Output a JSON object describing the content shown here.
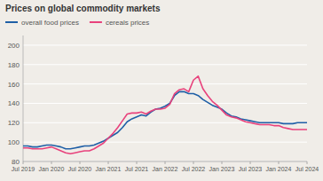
{
  "chart_data": {
    "type": "line",
    "title": "Prices on global commodity markets",
    "categories": [
      "Jul 2019",
      null,
      null,
      null,
      null,
      null,
      "Jan 2020",
      null,
      null,
      null,
      null,
      null,
      "Jul 2020",
      null,
      null,
      null,
      null,
      null,
      "Jan 2021",
      null,
      null,
      null,
      null,
      null,
      "Jul 2021",
      null,
      null,
      null,
      null,
      null,
      "Jan 2022",
      null,
      null,
      null,
      null,
      null,
      "Jul 2022",
      null,
      null,
      null,
      null,
      null,
      "Jan 2023",
      null,
      null,
      null,
      null,
      null,
      "Jul 2023",
      null,
      null,
      null,
      null,
      null,
      "Jan 2024",
      null,
      null,
      null,
      null,
      null,
      "Jul 2024"
    ],
    "series": [
      {
        "name": "overall food prices",
        "color": "#1f5fa6",
        "values": [
          96,
          96,
          95,
          95,
          96,
          97,
          97,
          96,
          95,
          93,
          93,
          94,
          95,
          96,
          96,
          97,
          99,
          101,
          104,
          107,
          110,
          115,
          121,
          124,
          126,
          128,
          127,
          131,
          134,
          135,
          137,
          140,
          148,
          152,
          152,
          150,
          150,
          148,
          144,
          141,
          138,
          136,
          134,
          130,
          127,
          126,
          124,
          123,
          122,
          121,
          120,
          120,
          120,
          120,
          120,
          119,
          119,
          119,
          120,
          120,
          120
        ]
      },
      {
        "name": "cereals prices",
        "color": "#e8427c",
        "values": [
          94,
          94,
          93,
          93,
          93,
          94,
          95,
          93,
          91,
          89,
          88,
          89,
          90,
          91,
          91,
          93,
          96,
          99,
          104,
          109,
          115,
          122,
          129,
          130,
          130,
          131,
          129,
          132,
          134,
          134,
          135,
          139,
          150,
          154,
          155,
          152,
          164,
          168,
          155,
          148,
          142,
          138,
          133,
          128,
          126,
          125,
          123,
          121,
          120,
          119,
          118,
          118,
          118,
          117,
          117,
          115,
          114,
          113,
          113,
          113,
          113
        ]
      }
    ],
    "ylim": [
      80,
      210
    ],
    "yticks": [
      80,
      100,
      120,
      140,
      160,
      180,
      200
    ],
    "grid": true,
    "legend": "upper left"
  }
}
